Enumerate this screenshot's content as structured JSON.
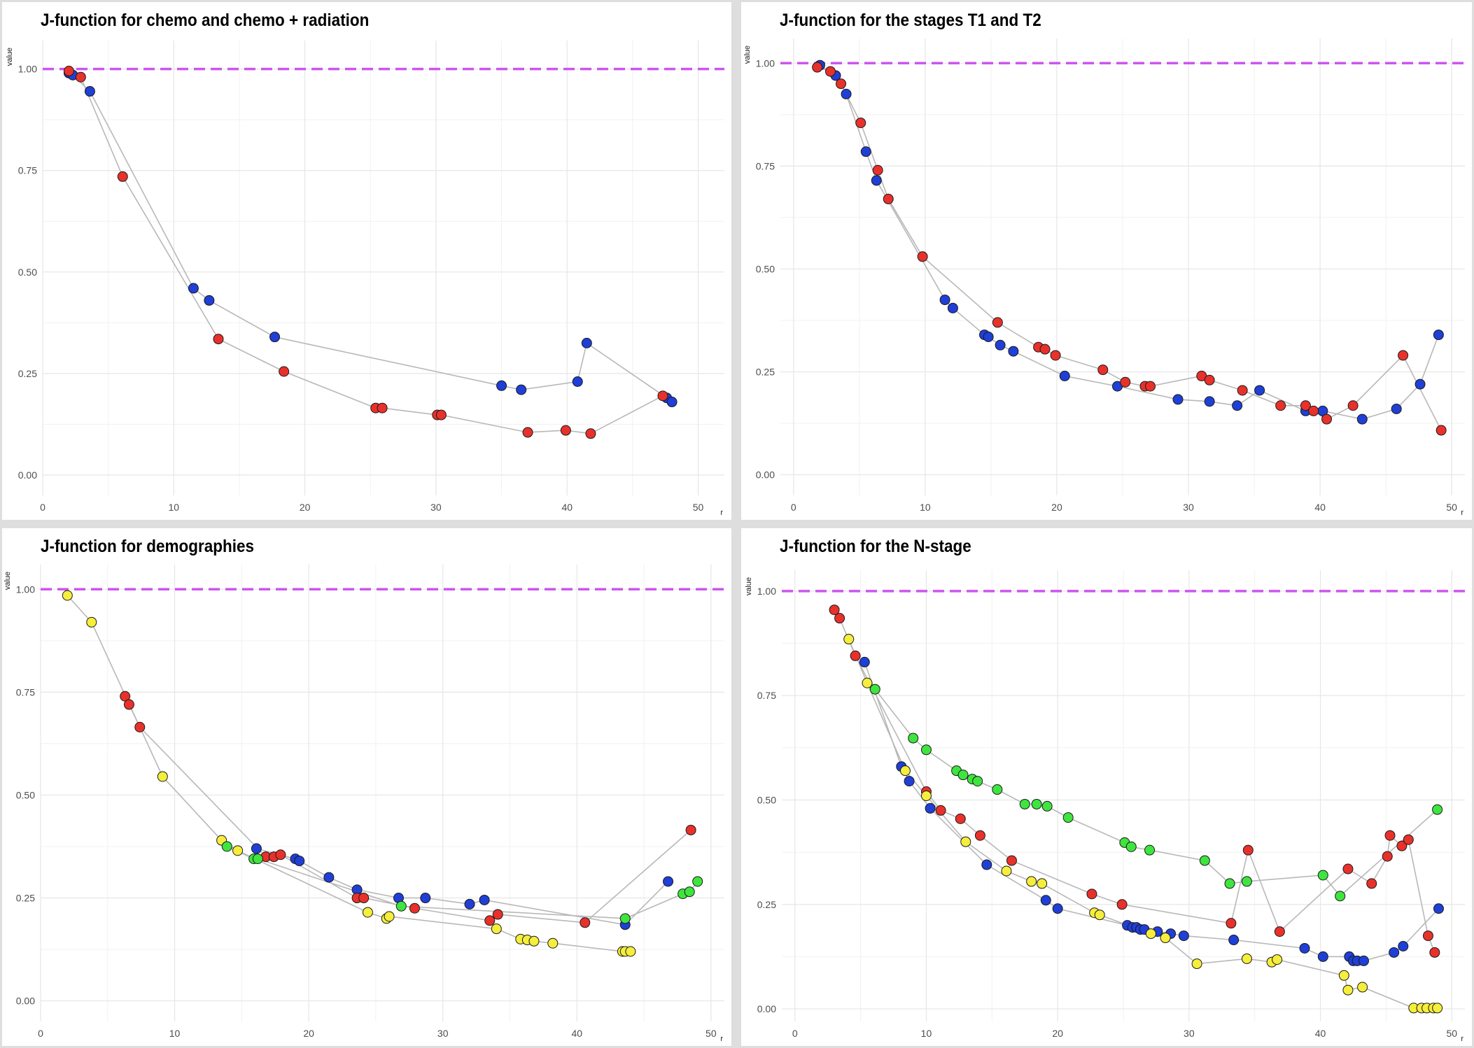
{
  "colors": {
    "blue": "#1f3fd6",
    "red": "#e8312b",
    "yellow": "#f5ee3c",
    "green": "#3ee53e",
    "reference_line": "#cc55ee",
    "connector_line": "#b8b8b8",
    "grid": "#e6e6e6"
  },
  "chart_data": [
    {
      "type": "scatter",
      "title": "J-function for chemo and chemo + radiation",
      "xlabel": "r",
      "ylabel": "value",
      "xlim": [
        0,
        52
      ],
      "ylim": [
        -0.05,
        1.07
      ],
      "xticks": [
        0,
        10,
        20,
        30,
        40,
        50
      ],
      "yticks": [
        0.0,
        0.25,
        0.5,
        0.75,
        1.0
      ],
      "ytick_labels": [
        "0.00",
        "0.25",
        "0.50",
        "0.75",
        "1.00"
      ],
      "reference_line": 1.0,
      "grid": true,
      "series": [
        {
          "color": "blue",
          "x": [
            2,
            2.3,
            3.6,
            11.5,
            12.7,
            17.7,
            35,
            36.5,
            40.8,
            41.5,
            47.6,
            48
          ],
          "y": [
            0.99,
            0.985,
            0.945,
            0.46,
            0.43,
            0.34,
            0.22,
            0.21,
            0.23,
            0.325,
            0.19,
            0.18
          ]
        },
        {
          "color": "red",
          "x": [
            2,
            2.9,
            6.1,
            13.4,
            18.4,
            25.4,
            25.9,
            30.1,
            30.4,
            37,
            39.9,
            41.8,
            47.3
          ],
          "y": [
            0.995,
            0.98,
            0.735,
            0.335,
            0.255,
            0.165,
            0.165,
            0.148,
            0.148,
            0.105,
            0.11,
            0.102,
            0.195
          ]
        }
      ]
    },
    {
      "type": "scatter",
      "title": "J-function for the stages T1 and T2",
      "xlabel": "r",
      "ylabel": "value",
      "xlim": [
        -1,
        51
      ],
      "ylim": [
        -0.05,
        1.06
      ],
      "xticks": [
        0,
        10,
        20,
        30,
        40,
        50
      ],
      "yticks": [
        0.0,
        0.25,
        0.5,
        0.75,
        1.0
      ],
      "ytick_labels": [
        "0.00",
        "0.25",
        "0.50",
        "0.75",
        "1.00"
      ],
      "reference_line": 1.0,
      "grid": true,
      "series": [
        {
          "color": "blue",
          "x": [
            2,
            3.2,
            4,
            5.5,
            6.3,
            11.5,
            12.1,
            14.5,
            14.8,
            15.7,
            16.7,
            20.6,
            24.6,
            29.2,
            31.6,
            33.7,
            35.4,
            38.9,
            40.2,
            43.2,
            45.8,
            47.6,
            49
          ],
          "y": [
            0.995,
            0.97,
            0.925,
            0.785,
            0.715,
            0.425,
            0.405,
            0.34,
            0.335,
            0.315,
            0.3,
            0.24,
            0.215,
            0.183,
            0.178,
            0.168,
            0.205,
            0.155,
            0.155,
            0.135,
            0.16,
            0.22,
            0.34
          ]
        },
        {
          "color": "red",
          "x": [
            1.8,
            2.8,
            3.6,
            5.1,
            6.4,
            7.2,
            9.8,
            15.5,
            18.6,
            19.1,
            19.9,
            23.5,
            25.2,
            26.7,
            27.1,
            31,
            31.6,
            34.1,
            37,
            38.9,
            39.5,
            40.5,
            42.5,
            46.3,
            49.2
          ],
          "y": [
            0.99,
            0.98,
            0.95,
            0.855,
            0.74,
            0.67,
            0.53,
            0.37,
            0.31,
            0.305,
            0.29,
            0.255,
            0.225,
            0.215,
            0.215,
            0.24,
            0.23,
            0.205,
            0.168,
            0.168,
            0.155,
            0.135,
            0.168,
            0.29,
            0.108
          ]
        }
      ]
    },
    {
      "type": "scatter",
      "title": "J-function for demographies",
      "xlabel": "r",
      "ylabel": "value",
      "xlim": [
        0,
        51
      ],
      "ylim": [
        -0.05,
        1.06
      ],
      "xticks": [
        0,
        10,
        20,
        30,
        40,
        50
      ],
      "yticks": [
        0.0,
        0.25,
        0.5,
        0.75,
        1.0
      ],
      "ytick_labels": [
        "0.00",
        "0.25",
        "0.50",
        "0.75",
        "1.00"
      ],
      "reference_line": 1.0,
      "grid": true,
      "series": [
        {
          "color": "blue",
          "x": [
            16.1,
            19,
            19.3,
            21.5,
            23.6,
            26.7,
            28.7,
            32,
            33.1,
            43.6,
            46.8
          ],
          "y": [
            0.37,
            0.345,
            0.34,
            0.3,
            0.27,
            0.25,
            0.25,
            0.235,
            0.245,
            0.185,
            0.29
          ]
        },
        {
          "color": "red",
          "x": [
            6.3,
            6.6,
            7.4,
            16.8,
            17.4,
            17.9,
            23.6,
            24.1,
            27.9,
            33.5,
            34.1,
            40.6,
            48.5
          ],
          "y": [
            0.74,
            0.72,
            0.665,
            0.35,
            0.35,
            0.355,
            0.25,
            0.25,
            0.225,
            0.195,
            0.21,
            0.19,
            0.415
          ]
        },
        {
          "color": "yellow",
          "x": [
            2,
            3.8,
            9.1,
            13.5,
            14.7,
            24.4,
            25.8,
            26,
            34,
            35.8,
            36.3,
            36.8,
            38.2,
            43.4,
            43.6,
            44
          ],
          "y": [
            0.985,
            0.92,
            0.545,
            0.39,
            0.365,
            0.215,
            0.2,
            0.205,
            0.175,
            0.15,
            0.148,
            0.145,
            0.14,
            0.12,
            0.12,
            0.12
          ]
        },
        {
          "color": "green",
          "x": [
            13.9,
            15.9,
            16.2,
            26.9,
            43.6,
            47.9,
            48.4,
            49
          ],
          "y": [
            0.375,
            0.345,
            0.345,
            0.23,
            0.2,
            0.26,
            0.265,
            0.29
          ]
        }
      ]
    },
    {
      "type": "scatter",
      "title": "J-function for the N-stage",
      "xlabel": "r",
      "ylabel": "value",
      "xlim": [
        -1,
        51
      ],
      "ylim": [
        -0.03,
        1.05
      ],
      "xticks": [
        0,
        10,
        20,
        30,
        40,
        50
      ],
      "yticks": [
        0.0,
        0.25,
        0.5,
        0.75,
        1.0
      ],
      "ytick_labels": [
        "0.00",
        "0.25",
        "0.50",
        "0.75",
        "1.00"
      ],
      "reference_line": 1.0,
      "grid": true,
      "series": [
        {
          "color": "blue",
          "x": [
            5.3,
            8.1,
            8.7,
            10.3,
            14.6,
            19.1,
            20,
            25.3,
            25.7,
            26,
            26.3,
            26.6,
            27.6,
            28.6,
            29.6,
            33.4,
            38.8,
            40.2,
            42.2,
            42.5,
            42.8,
            43.3,
            45.6,
            46.3,
            49
          ],
          "y": [
            0.83,
            0.58,
            0.545,
            0.48,
            0.345,
            0.26,
            0.24,
            0.2,
            0.195,
            0.195,
            0.19,
            0.19,
            0.185,
            0.18,
            0.175,
            0.165,
            0.145,
            0.125,
            0.125,
            0.115,
            0.115,
            0.115,
            0.135,
            0.15,
            0.24
          ]
        },
        {
          "color": "red",
          "x": [
            3,
            3.4,
            4.6,
            10,
            11.1,
            12.6,
            14.1,
            16.5,
            22.6,
            24.9,
            33.2,
            34.5,
            36.9,
            42.1,
            43.9,
            45.1,
            45.3,
            46.2,
            46.7,
            48.2,
            48.7
          ],
          "y": [
            0.955,
            0.935,
            0.845,
            0.52,
            0.475,
            0.455,
            0.415,
            0.355,
            0.275,
            0.25,
            0.205,
            0.38,
            0.185,
            0.335,
            0.3,
            0.365,
            0.415,
            0.39,
            0.405,
            0.175,
            0.135
          ]
        },
        {
          "color": "yellow",
          "x": [
            4.1,
            5.5,
            8.4,
            10,
            13,
            16.1,
            18,
            18.8,
            22.8,
            23.2,
            27.1,
            28.2,
            30.6,
            34.4,
            36.3,
            36.7,
            41.8,
            42.1,
            43.2,
            47.1,
            47.7,
            48.1,
            48.6,
            48.9
          ],
          "y": [
            0.885,
            0.78,
            0.57,
            0.51,
            0.4,
            0.33,
            0.305,
            0.3,
            0.23,
            0.225,
            0.18,
            0.17,
            0.108,
            0.12,
            0.112,
            0.118,
            0.08,
            0.045,
            0.052,
            0.002,
            0.002,
            0.002,
            0.002,
            0.002
          ]
        },
        {
          "color": "green",
          "x": [
            6.1,
            9,
            10,
            12.3,
            12.8,
            13.5,
            13.9,
            15.4,
            17.5,
            18.4,
            19.2,
            20.8,
            25.1,
            25.6,
            27,
            31.2,
            33.1,
            34.4,
            40.2,
            41.5,
            48.9
          ],
          "y": [
            0.765,
            0.648,
            0.62,
            0.57,
            0.56,
            0.55,
            0.545,
            0.525,
            0.49,
            0.49,
            0.485,
            0.458,
            0.398,
            0.388,
            0.38,
            0.355,
            0.3,
            0.305,
            0.32,
            0.27,
            0.477
          ]
        }
      ]
    }
  ]
}
